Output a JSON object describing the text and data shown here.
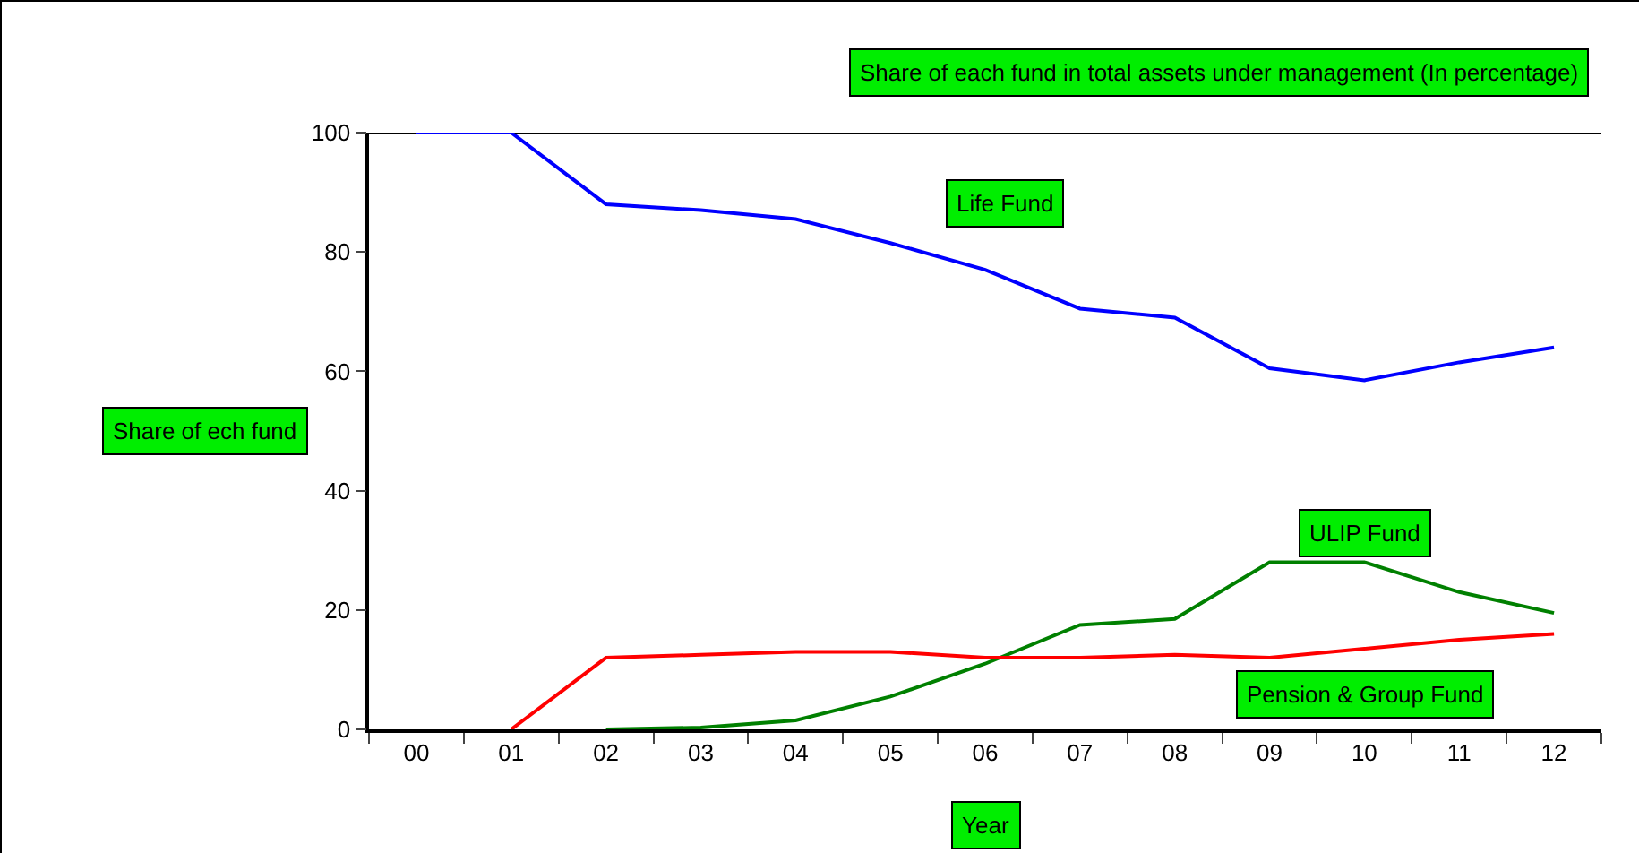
{
  "chart_data": {
    "type": "line",
    "title": "Share of each fund in total assets under management (In percentage)",
    "xlabel": "Year",
    "ylabel": "Share of ech fund",
    "categories": [
      "00",
      "01",
      "02",
      "03",
      "04",
      "05",
      "06",
      "07",
      "08",
      "09",
      "10",
      "11",
      "12"
    ],
    "series": [
      {
        "name": "Life Fund",
        "color": "#0000ff",
        "values": [
          100,
          100,
          88,
          87,
          85.5,
          81.5,
          77,
          70.5,
          69,
          60.5,
          58.5,
          61.5,
          64
        ]
      },
      {
        "name": "ULIP Fund",
        "color": "#008000",
        "values": [
          null,
          null,
          0,
          0.3,
          1.5,
          5.5,
          11,
          17.5,
          18.5,
          28,
          28,
          23,
          19.5
        ]
      },
      {
        "name": "Pension & Group Fund",
        "color": "#ff0000",
        "values": [
          null,
          0,
          12,
          12.5,
          13,
          13,
          12,
          12,
          12.5,
          12,
          13.5,
          15,
          16
        ]
      }
    ],
    "ylim": [
      0,
      100
    ],
    "yticks": [
      0,
      20,
      40,
      60,
      80,
      100
    ],
    "grid": false,
    "legend": false,
    "marker": "none",
    "line_style": "solid"
  }
}
